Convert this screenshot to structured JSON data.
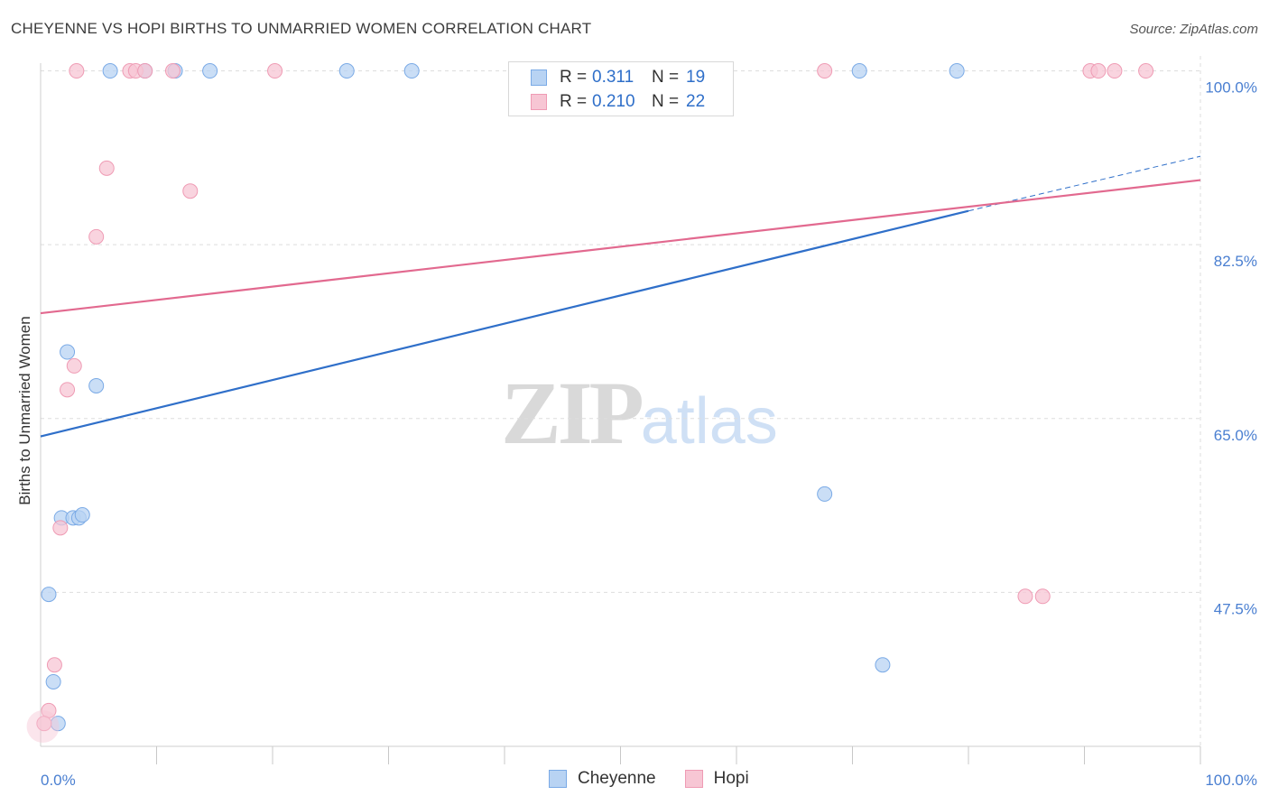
{
  "header": {
    "title": "CHEYENNE VS HOPI BIRTHS TO UNMARRIED WOMEN CORRELATION CHART",
    "source": "Source: ZipAtlas.com"
  },
  "watermark": {
    "zip": "ZIP",
    "atlas": "atlas"
  },
  "legend": {
    "rows": [
      {
        "r_label": "R =",
        "r_value": "0.311",
        "n_label": "N =",
        "n_value": "19"
      },
      {
        "r_label": "R =",
        "r_value": "0.210",
        "n_label": "N =",
        "n_value": "22"
      }
    ]
  },
  "bottom_legend": {
    "cheyenne": "Cheyenne",
    "hopi": "Hopi"
  },
  "colors": {
    "cheyenne_fill": "#b8d3f3",
    "cheyenne_stroke": "#7aaae6",
    "cheyenne_line": "#2f6fc9",
    "hopi_fill": "#f7c6d4",
    "hopi_stroke": "#ef9bb4",
    "hopi_line": "#e2698f",
    "grid": "#dddddd",
    "tick_text": "#4a7fd1"
  },
  "chart_data": {
    "type": "scatter",
    "title": "CHEYENNE VS HOPI BIRTHS TO UNMARRIED WOMEN CORRELATION CHART",
    "xlabel": "",
    "ylabel": "Births to Unmarried Women",
    "xlim": [
      0,
      100
    ],
    "ylim": [
      32,
      101.5
    ],
    "x_tick_labels": [
      "0.0%",
      "100.0%"
    ],
    "y_ticks": [
      47.5,
      65.0,
      82.5,
      100.0
    ],
    "y_tick_labels": [
      "47.5%",
      "65.0%",
      "82.5%",
      "100.0%"
    ],
    "grid": true,
    "series": [
      {
        "name": "Cheyenne",
        "points": [
          [
            6.0,
            100
          ],
          [
            9.0,
            100
          ],
          [
            11.6,
            100
          ],
          [
            14.6,
            100
          ],
          [
            26.4,
            100
          ],
          [
            32.0,
            100
          ],
          [
            70.6,
            100
          ],
          [
            79.0,
            100
          ],
          [
            2.3,
            71.7
          ],
          [
            4.8,
            68.3
          ],
          [
            1.8,
            55.0
          ],
          [
            2.8,
            55.0
          ],
          [
            3.3,
            55.0
          ],
          [
            3.6,
            55.3
          ],
          [
            0.7,
            47.3
          ],
          [
            67.6,
            57.4
          ],
          [
            1.1,
            38.5
          ],
          [
            1.5,
            34.3
          ],
          [
            72.6,
            40.2
          ]
        ],
        "trend": {
          "x0": 0,
          "y0": 63.2,
          "x1": 80.0,
          "y1": 85.9,
          "dashed_to_x": 100,
          "dashed_to_y": 91.4
        }
      },
      {
        "name": "Hopi",
        "points": [
          [
            3.1,
            100
          ],
          [
            7.7,
            100
          ],
          [
            8.2,
            100
          ],
          [
            9.0,
            100
          ],
          [
            11.4,
            100
          ],
          [
            20.2,
            100
          ],
          [
            67.6,
            100
          ],
          [
            90.5,
            100
          ],
          [
            91.2,
            100
          ],
          [
            92.6,
            100
          ],
          [
            95.3,
            100
          ],
          [
            5.7,
            90.2
          ],
          [
            12.9,
            87.9
          ],
          [
            4.8,
            83.3
          ],
          [
            2.9,
            70.3
          ],
          [
            2.3,
            67.9
          ],
          [
            1.7,
            54.0
          ],
          [
            84.9,
            47.1
          ],
          [
            86.4,
            47.1
          ],
          [
            1.2,
            40.2
          ],
          [
            0.7,
            35.6
          ],
          [
            0.3,
            34.3
          ]
        ],
        "trend": {
          "x0": 0,
          "y0": 75.6,
          "x1": 100,
          "y1": 89.0
        }
      }
    ]
  }
}
